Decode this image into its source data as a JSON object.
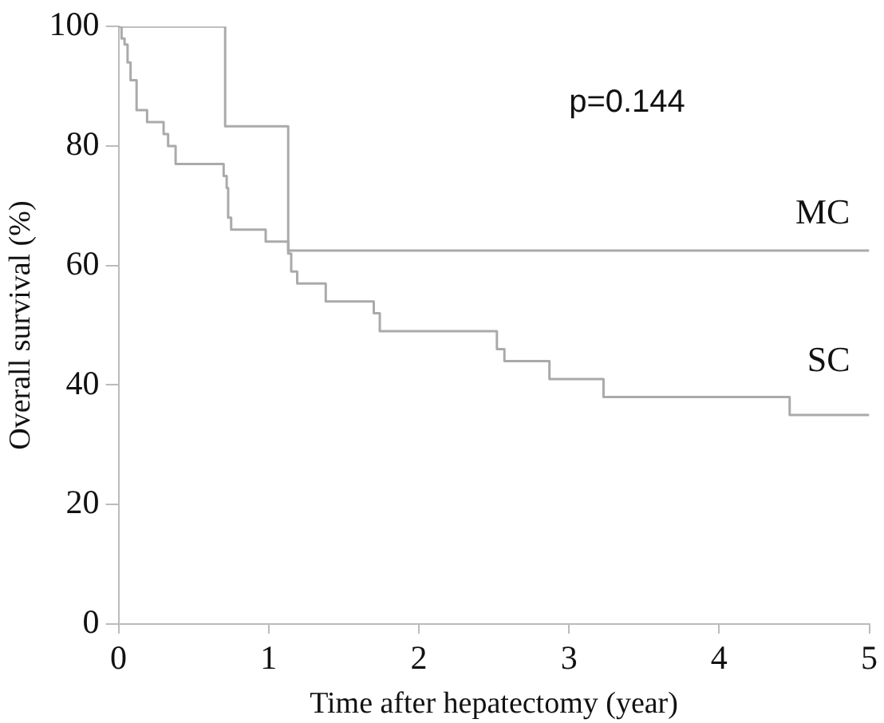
{
  "chart_data": {
    "type": "step",
    "xlabel": "Time after hepatectomy (year)",
    "ylabel": "Overall survival (%)",
    "xlim": [
      0,
      5
    ],
    "xticks": [
      0,
      1,
      2,
      3,
      4,
      5
    ],
    "ylim": [
      0,
      100
    ],
    "yticks": [
      0,
      20,
      40,
      60,
      80,
      100
    ],
    "grid": false,
    "legend": false,
    "marker": "none",
    "line_style": "solid",
    "annotations": [
      "p=0.144"
    ],
    "series": [
      {
        "name": "MC",
        "color": "#aaaaaa",
        "x": [
          0,
          0.71,
          1.13,
          5
        ],
        "values": [
          100,
          83.3,
          62.5,
          62.5
        ]
      },
      {
        "name": "SC",
        "color": "#aaaaaa",
        "x": [
          0,
          0.02,
          0.04,
          0.06,
          0.08,
          0.12,
          0.19,
          0.3,
          0.33,
          0.38,
          0.7,
          0.72,
          0.73,
          0.75,
          0.98,
          1.13,
          1.15,
          1.19,
          1.38,
          1.7,
          1.74,
          2.52,
          2.57,
          2.87,
          3.23,
          4.47,
          5
        ],
        "values": [
          100,
          98,
          97,
          94,
          91,
          86,
          84,
          82,
          80,
          77,
          75,
          73,
          68,
          66,
          64,
          62,
          59,
          57,
          54,
          52,
          49,
          46,
          44,
          41,
          38,
          35,
          35
        ]
      }
    ]
  }
}
